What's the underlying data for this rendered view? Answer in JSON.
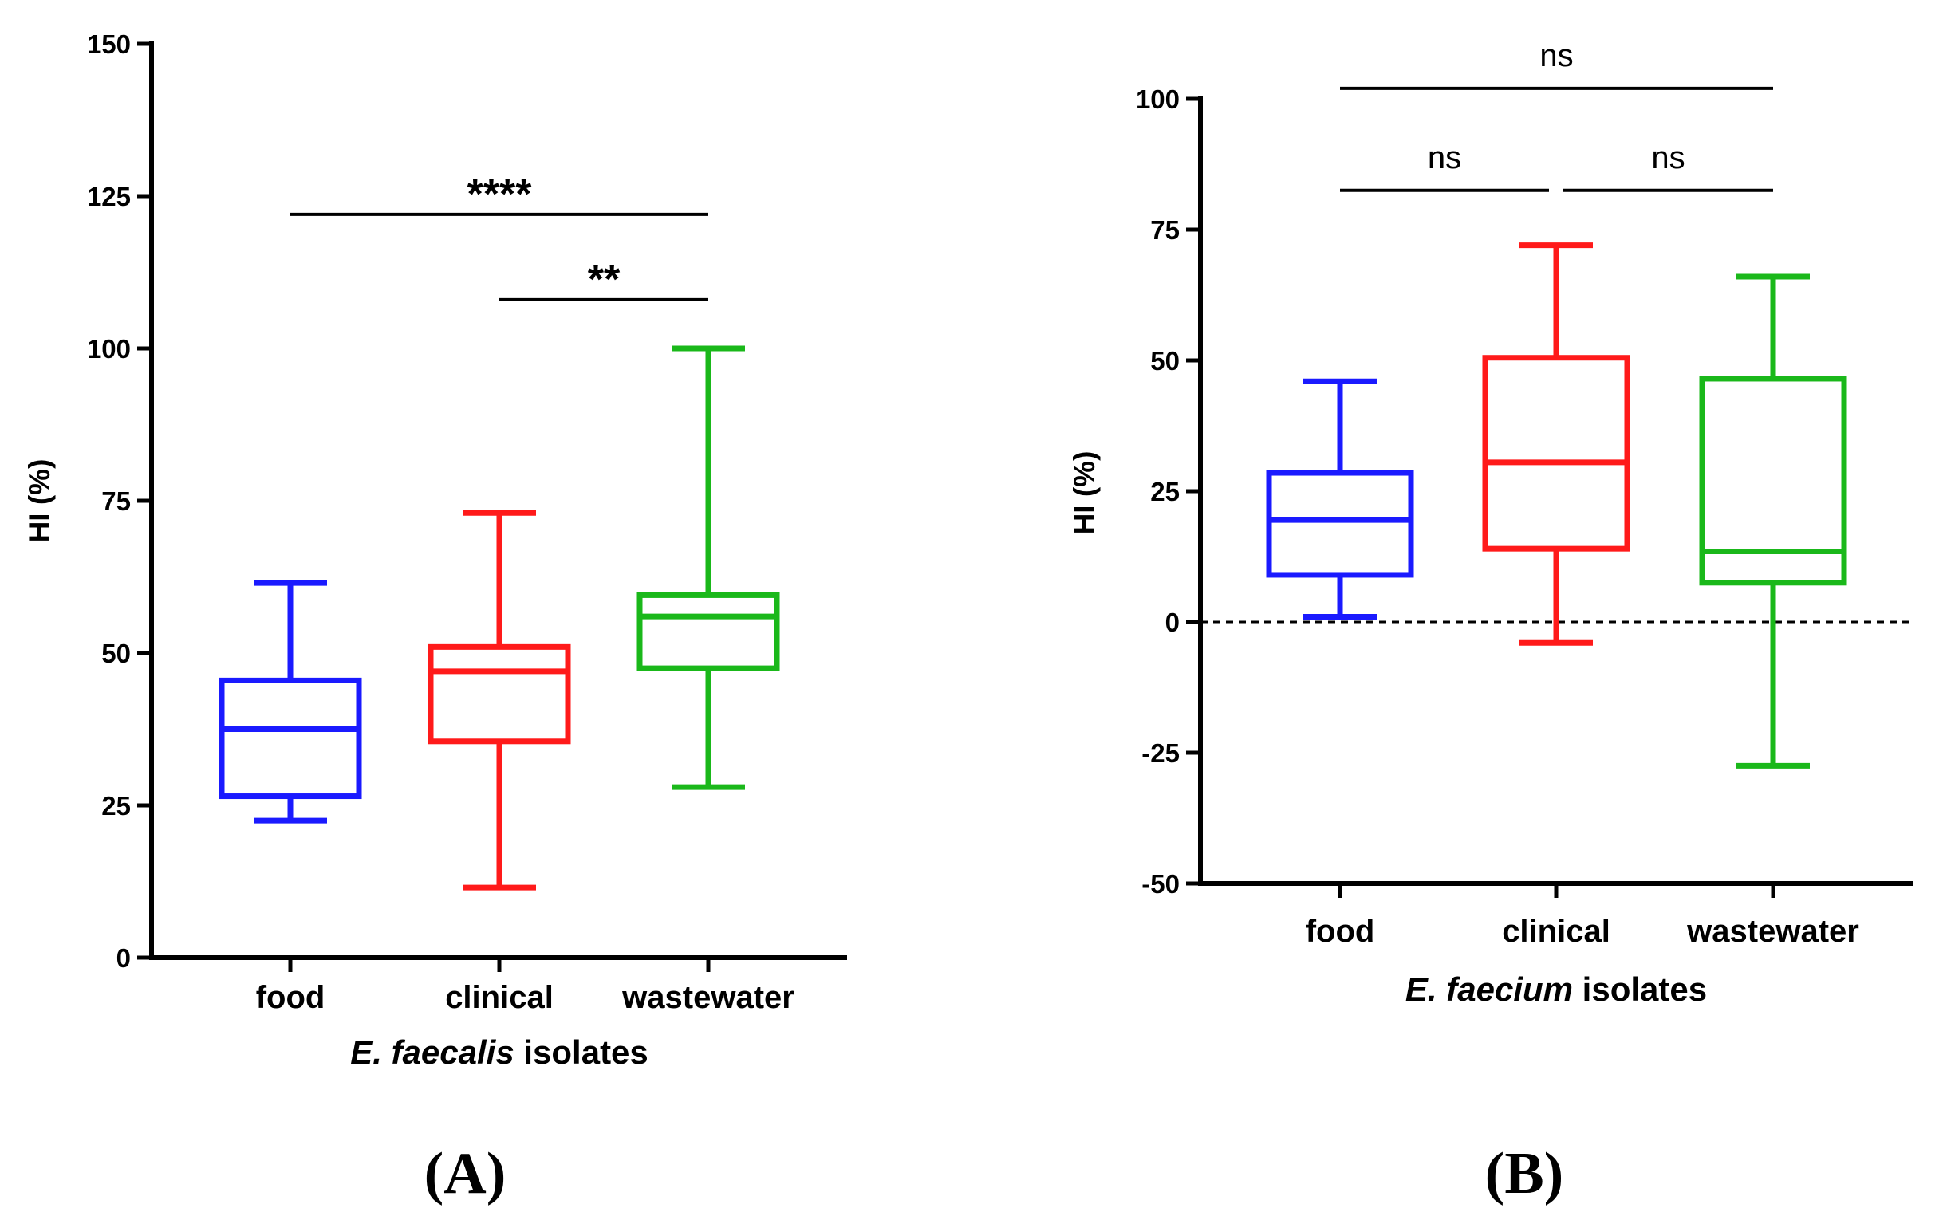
{
  "chart_data": [
    {
      "type": "boxplot",
      "panel_label": "(A)",
      "xlabel_italic": "E. faecalis",
      "xlabel_rest": " isolates",
      "ylabel": "HI (%)",
      "ylim": [
        0,
        150
      ],
      "yticks": [
        "0",
        "25",
        "50",
        "75",
        "100",
        "125",
        "150"
      ],
      "categories": [
        "food",
        "clinical",
        "wastewater"
      ],
      "colors": [
        "#1a1aff",
        "#ff1a1a",
        "#1ab81a"
      ],
      "boxes": [
        {
          "min": 22.5,
          "q1": 26.5,
          "median": 37.5,
          "q3": 45.5,
          "max": 61.5
        },
        {
          "min": 11.5,
          "q1": 35.5,
          "median": 47.0,
          "q3": 51.0,
          "max": 73.0
        },
        {
          "min": 28.0,
          "q1": 47.5,
          "median": 56.0,
          "q3": 59.5,
          "max": 100.0
        }
      ],
      "significance": [
        {
          "from": 0,
          "to": 2,
          "y": 122,
          "label": "****"
        },
        {
          "from": 1,
          "to": 2,
          "y": 108,
          "label": "**"
        }
      ]
    },
    {
      "type": "boxplot",
      "panel_label": "(B)",
      "xlabel_italic": "E. faecium",
      "xlabel_rest": " isolates",
      "ylabel": "HI (%)",
      "ylim": [
        -50,
        100
      ],
      "yticks": [
        "-50",
        "-25",
        "0",
        "25",
        "50",
        "75",
        "100"
      ],
      "categories": [
        "food",
        "clinical",
        "wastewater"
      ],
      "colors": [
        "#1a1aff",
        "#ff1a1a",
        "#1ab81a"
      ],
      "reference_line": 0,
      "boxes": [
        {
          "min": 1.0,
          "q1": 9.0,
          "median": 19.5,
          "q3": 28.5,
          "max": 46.0
        },
        {
          "min": -4.0,
          "q1": 14.0,
          "median": 30.5,
          "q3": 50.5,
          "max": 72.0
        },
        {
          "min": -27.5,
          "q1": 7.5,
          "median": 13.5,
          "q3": 46.5,
          "max": 66.0
        }
      ],
      "significance": [
        {
          "from": 0,
          "to": 2,
          "y": 102,
          "label": "ns"
        },
        {
          "from": 0,
          "to": 1,
          "y": 82.5,
          "label": "ns"
        },
        {
          "from": 1,
          "to": 2,
          "y": 82.5,
          "label": "ns"
        }
      ]
    }
  ]
}
